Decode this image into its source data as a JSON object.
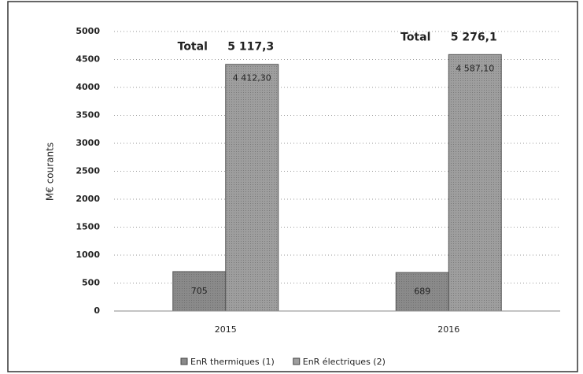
{
  "chart_data": {
    "type": "bar",
    "y_label": "M€ courants",
    "categories": [
      "2015",
      "2016"
    ],
    "series": [
      {
        "name": "EnR thermiques (1)",
        "color": "#8a8a8a",
        "values": [
          705,
          689
        ],
        "value_labels": [
          "705",
          "689"
        ]
      },
      {
        "name": "EnR électriques (2)",
        "color": "#9e9e9e",
        "values": [
          4412.3,
          4587.1
        ],
        "value_labels": [
          "4 412,30",
          "4 587,10"
        ]
      }
    ],
    "annotations": [
      {
        "label": "Total",
        "value": "5 117,3"
      },
      {
        "label": "Total",
        "value": "5 276,1"
      }
    ],
    "ylim": [
      0,
      5000
    ],
    "yticks": [
      0,
      500,
      1000,
      1500,
      2000,
      2500,
      3000,
      3500,
      4000,
      4500,
      5000
    ],
    "grid": true,
    "legend": "bottom"
  }
}
